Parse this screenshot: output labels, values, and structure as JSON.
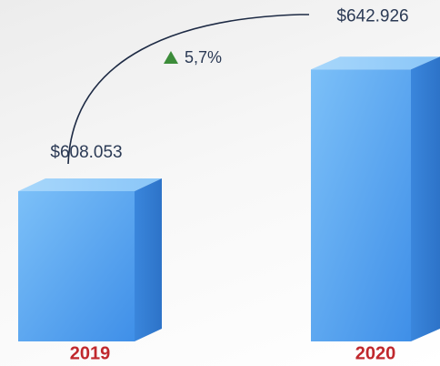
{
  "chart_data": {
    "type": "bar",
    "categories": [
      "2019",
      "2020"
    ],
    "values": [
      608053,
      642926
    ],
    "value_labels": [
      "$608.053",
      "$642.926"
    ],
    "annotation": "5,7%",
    "ylim": [
      565000,
      655000
    ],
    "color": "#4a9cf0"
  }
}
